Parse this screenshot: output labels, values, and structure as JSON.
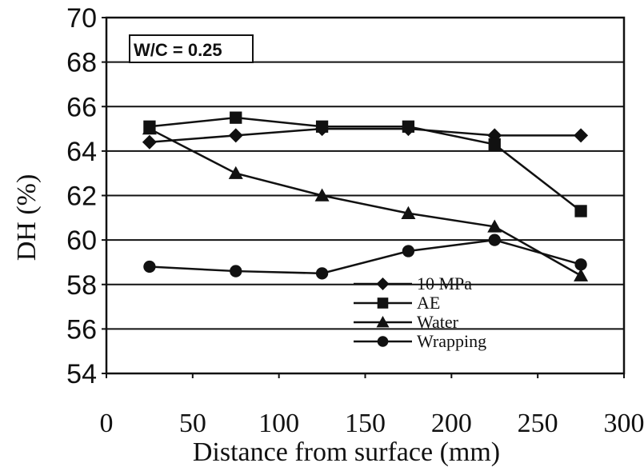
{
  "chart_data": {
    "type": "line",
    "annotation": "W/C = 0.25",
    "xlabel": "Distance from surface (mm)",
    "ylabel": "DH (%)",
    "xlim": [
      0,
      300
    ],
    "ylim": [
      54,
      70
    ],
    "xticks": [
      "0",
      "50",
      "100",
      "150",
      "200",
      "250",
      "300"
    ],
    "yticks": [
      "54",
      "56",
      "58",
      "60",
      "62",
      "64",
      "66",
      "68",
      "70"
    ],
    "grid": "horizontal",
    "legend_position": "lower-right",
    "x": [
      25,
      75,
      125,
      175,
      225,
      275
    ],
    "series": [
      {
        "name": "10 MPa",
        "marker": "diamond",
        "values": [
          64.4,
          64.7,
          65.0,
          65.0,
          64.7,
          64.7
        ]
      },
      {
        "name": "AE",
        "marker": "square",
        "values": [
          65.1,
          65.5,
          65.1,
          65.1,
          64.3,
          61.3
        ]
      },
      {
        "name": "Water",
        "marker": "triangle",
        "values": [
          65.0,
          63.0,
          62.0,
          61.2,
          60.6,
          58.4
        ]
      },
      {
        "name": "Wrapping",
        "marker": "circle",
        "values": [
          58.8,
          58.6,
          58.5,
          59.5,
          60.0,
          58.9
        ]
      }
    ]
  }
}
